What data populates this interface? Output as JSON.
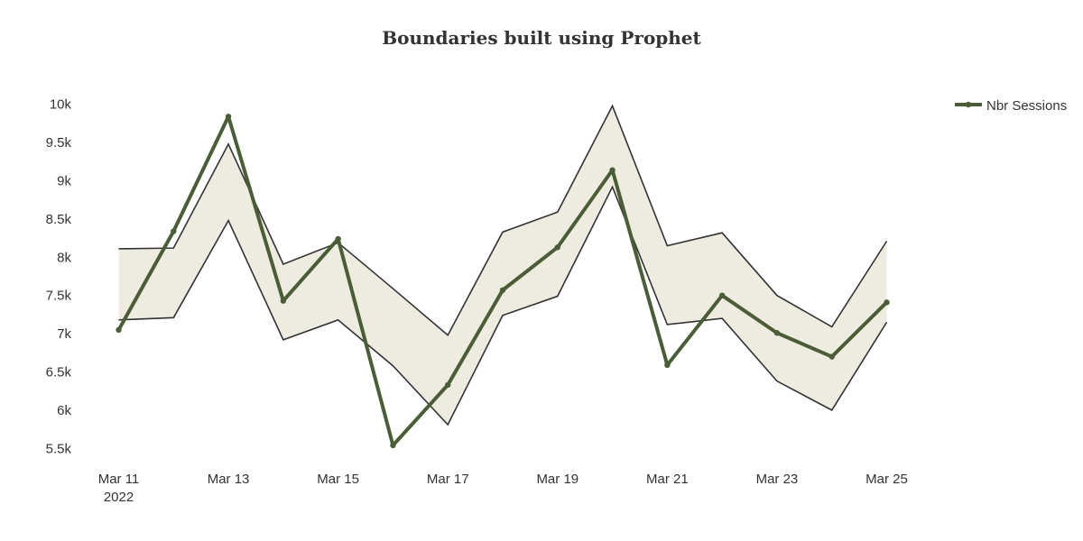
{
  "chart_data": {
    "type": "line",
    "title": "Boundaries built using Prophet",
    "x": [
      "2022-03-11",
      "2022-03-12",
      "2022-03-13",
      "2022-03-14",
      "2022-03-15",
      "2022-03-16",
      "2022-03-17",
      "2022-03-18",
      "2022-03-19",
      "2022-03-20",
      "2022-03-21",
      "2022-03-22",
      "2022-03-23",
      "2022-03-24",
      "2022-03-25"
    ],
    "x_tick_labels": [
      {
        "date": "2022-03-11",
        "label": "Mar 11",
        "sub": "2022"
      },
      {
        "date": "2022-03-13",
        "label": "Mar 13",
        "sub": ""
      },
      {
        "date": "2022-03-15",
        "label": "Mar 15",
        "sub": ""
      },
      {
        "date": "2022-03-17",
        "label": "Mar 17",
        "sub": ""
      },
      {
        "date": "2022-03-19",
        "label": "Mar 19",
        "sub": ""
      },
      {
        "date": "2022-03-21",
        "label": "Mar 21",
        "sub": ""
      },
      {
        "date": "2022-03-23",
        "label": "Mar 23",
        "sub": ""
      },
      {
        "date": "2022-03-25",
        "label": "Mar 25",
        "sub": ""
      }
    ],
    "y_ticks": [
      5500,
      6000,
      6500,
      7000,
      7500,
      8000,
      8500,
      9000,
      9500,
      10000
    ],
    "y_tick_labels": [
      "5.5k",
      "6k",
      "6.5k",
      "7k",
      "7.5k",
      "8k",
      "8.5k",
      "9k",
      "9.5k",
      "10k"
    ],
    "ylim": [
      5350,
      10150
    ],
    "series": [
      {
        "name": "Nbr Sessions",
        "values": [
          7050,
          8340,
          9840,
          7430,
          8240,
          5540,
          6330,
          7570,
          8130,
          9140,
          6590,
          7500,
          7010,
          6700,
          7410
        ]
      }
    ],
    "band": {
      "upper": [
        8110,
        8120,
        9480,
        7910,
        8190,
        7590,
        6980,
        8330,
        8590,
        9980,
        8150,
        8320,
        7500,
        7090,
        8210
      ],
      "lower": [
        7180,
        7210,
        8480,
        6920,
        7180,
        6580,
        5810,
        7240,
        7490,
        8920,
        7120,
        7200,
        6380,
        6000,
        7150
      ]
    },
    "legend_position": "top-right",
    "colors": {
      "series": "#4a5e36",
      "band_fill": "#eeebe1",
      "band_line": "#333333"
    },
    "grid": false
  }
}
